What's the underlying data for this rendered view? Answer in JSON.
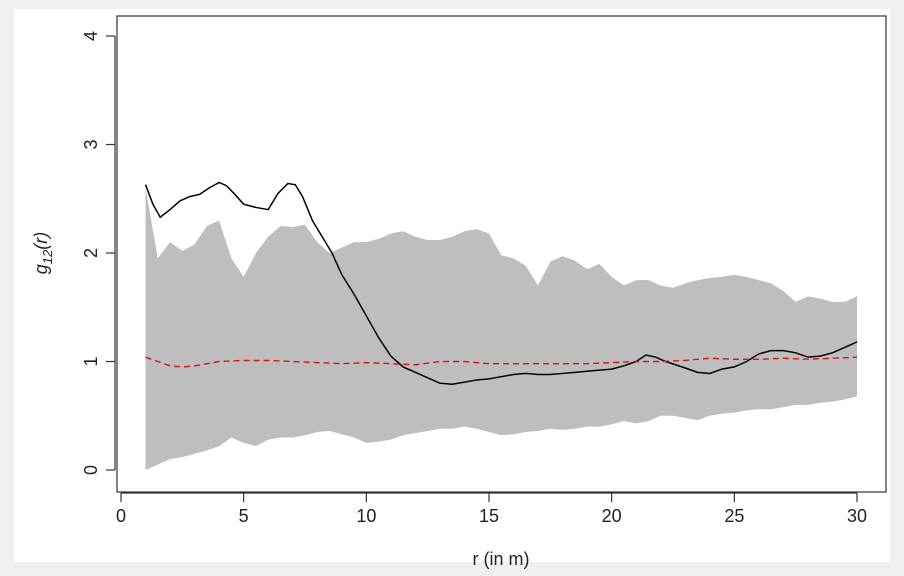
{
  "chart_data": {
    "type": "line",
    "xlabel": "r (in m)",
    "ylabel": {
      "base": "g",
      "sub": "12",
      "arg": "(r)"
    },
    "xlim": [
      0,
      30
    ],
    "ylim": [
      0,
      4
    ],
    "xticks": [
      0,
      5,
      10,
      15,
      20,
      25,
      30
    ],
    "yticks": [
      0,
      1,
      2,
      3,
      4
    ],
    "grid": false,
    "envelope": {
      "x": [
        1.0,
        1.5,
        2.0,
        2.5,
        3.0,
        3.5,
        4.0,
        4.5,
        5.0,
        5.5,
        6.0,
        6.5,
        7.0,
        7.5,
        8.0,
        8.5,
        9.0,
        9.5,
        10.0,
        10.5,
        11.0,
        11.5,
        12.0,
        12.5,
        13.0,
        13.5,
        14.0,
        14.5,
        15.0,
        15.5,
        16.0,
        16.5,
        17.0,
        17.5,
        18.0,
        18.5,
        19.0,
        19.5,
        20.0,
        20.5,
        21.0,
        21.5,
        22.0,
        22.5,
        23.0,
        23.5,
        24.0,
        24.5,
        25.0,
        25.5,
        26.0,
        26.5,
        27.0,
        27.5,
        28.0,
        28.5,
        29.0,
        29.5,
        30.0
      ],
      "upper": [
        2.6,
        1.95,
        2.1,
        2.02,
        2.08,
        2.25,
        2.3,
        1.95,
        1.78,
        2.0,
        2.15,
        2.25,
        2.24,
        2.26,
        2.1,
        2.0,
        2.05,
        2.1,
        2.1,
        2.13,
        2.18,
        2.2,
        2.15,
        2.12,
        2.12,
        2.15,
        2.2,
        2.22,
        2.18,
        1.98,
        1.95,
        1.88,
        1.7,
        1.92,
        1.97,
        1.93,
        1.85,
        1.9,
        1.78,
        1.7,
        1.75,
        1.75,
        1.7,
        1.68,
        1.72,
        1.75,
        1.77,
        1.78,
        1.8,
        1.78,
        1.75,
        1.72,
        1.65,
        1.55,
        1.6,
        1.58,
        1.55,
        1.55,
        1.6
      ],
      "lower": [
        0.0,
        0.05,
        0.1,
        0.12,
        0.15,
        0.18,
        0.22,
        0.3,
        0.25,
        0.22,
        0.28,
        0.3,
        0.3,
        0.32,
        0.35,
        0.36,
        0.33,
        0.3,
        0.25,
        0.26,
        0.28,
        0.32,
        0.34,
        0.36,
        0.38,
        0.38,
        0.4,
        0.38,
        0.35,
        0.32,
        0.33,
        0.35,
        0.36,
        0.38,
        0.37,
        0.38,
        0.4,
        0.4,
        0.42,
        0.45,
        0.43,
        0.45,
        0.5,
        0.5,
        0.48,
        0.46,
        0.5,
        0.52,
        0.53,
        0.55,
        0.56,
        0.56,
        0.58,
        0.6,
        0.6,
        0.62,
        0.63,
        0.65,
        0.68
      ],
      "color": "#bebebe"
    },
    "series": [
      {
        "style": "solid",
        "color": "#000000",
        "x": [
          1.0,
          1.3,
          1.6,
          2.0,
          2.4,
          2.8,
          3.2,
          3.6,
          4.0,
          4.3,
          4.6,
          5.0,
          5.5,
          6.0,
          6.4,
          6.8,
          7.1,
          7.4,
          7.8,
          8.2,
          8.6,
          9.0,
          9.5,
          10.0,
          10.5,
          11.0,
          11.5,
          12.0,
          12.5,
          13.0,
          13.5,
          14.0,
          14.5,
          15.0,
          15.5,
          16.0,
          16.5,
          17.0,
          17.5,
          18.0,
          18.5,
          19.0,
          19.5,
          20.0,
          20.5,
          21.0,
          21.4,
          21.8,
          22.2,
          22.6,
          23.0,
          23.5,
          24.0,
          24.5,
          25.0,
          25.5,
          26.0,
          26.5,
          27.0,
          27.5,
          28.0,
          28.5,
          29.0,
          29.5,
          30.0
        ],
        "y": [
          2.63,
          2.45,
          2.33,
          2.4,
          2.48,
          2.52,
          2.54,
          2.6,
          2.65,
          2.62,
          2.55,
          2.45,
          2.42,
          2.4,
          2.55,
          2.64,
          2.63,
          2.52,
          2.3,
          2.15,
          2.0,
          1.8,
          1.62,
          1.42,
          1.22,
          1.05,
          0.95,
          0.9,
          0.85,
          0.8,
          0.79,
          0.81,
          0.83,
          0.84,
          0.86,
          0.88,
          0.89,
          0.88,
          0.88,
          0.89,
          0.9,
          0.91,
          0.92,
          0.93,
          0.96,
          1.0,
          1.06,
          1.04,
          1.0,
          0.97,
          0.94,
          0.9,
          0.89,
          0.93,
          0.95,
          1.0,
          1.07,
          1.1,
          1.1,
          1.08,
          1.04,
          1.05,
          1.08,
          1.13,
          1.18
        ]
      },
      {
        "style": "dashed",
        "color": "#e01010",
        "x": [
          1.0,
          1.5,
          2.0,
          2.5,
          3.0,
          3.5,
          4.0,
          5.0,
          6.0,
          7.0,
          8.0,
          9.0,
          10.0,
          11.0,
          12.0,
          13.0,
          14.0,
          15.0,
          16.0,
          17.0,
          18.0,
          19.0,
          20.0,
          21.0,
          22.0,
          23.0,
          24.0,
          25.0,
          26.0,
          27.0,
          28.0,
          29.0,
          30.0
        ],
        "y": [
          1.04,
          1.0,
          0.96,
          0.95,
          0.96,
          0.98,
          1.0,
          1.01,
          1.01,
          1.0,
          0.99,
          0.98,
          0.99,
          0.98,
          0.97,
          1.0,
          1.0,
          0.98,
          0.98,
          0.98,
          0.98,
          0.98,
          0.99,
          1.0,
          1.0,
          1.01,
          1.03,
          1.02,
          1.02,
          1.03,
          1.02,
          1.03,
          1.04
        ]
      }
    ]
  }
}
